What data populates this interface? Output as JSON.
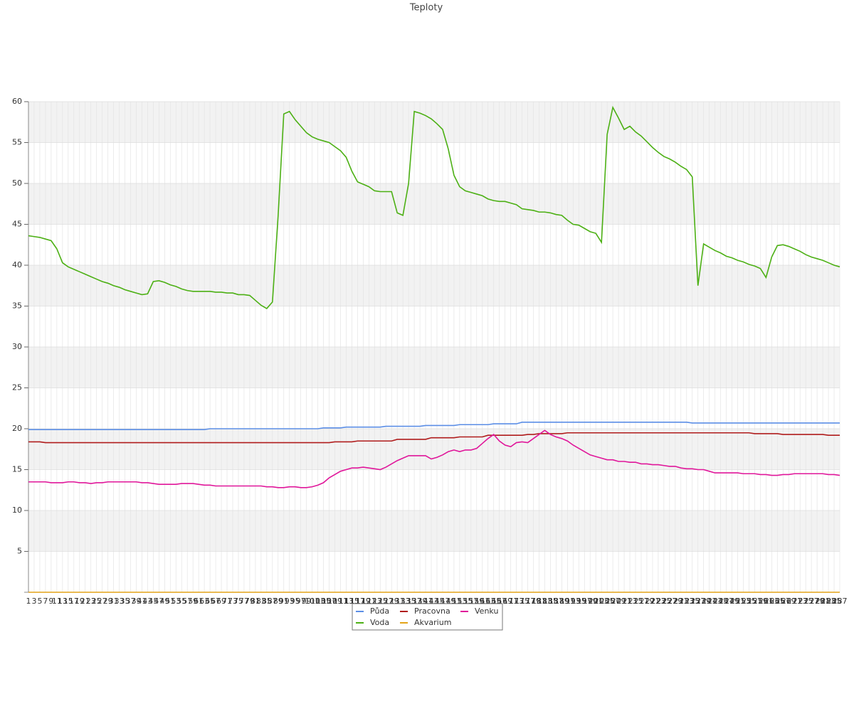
{
  "chart_data": {
    "type": "line",
    "title": "Teploty",
    "categories": [
      "1",
      "3",
      "5",
      "7",
      "9",
      "11",
      "13",
      "15",
      "17",
      "19",
      "21",
      "23",
      "25",
      "27",
      "29",
      "31",
      "33",
      "35",
      "37",
      "39",
      "41",
      "43",
      "45",
      "47",
      "49",
      "51",
      "53",
      "55",
      "57",
      "59",
      "61",
      "63",
      "65",
      "67",
      "69",
      "71",
      "73",
      "75",
      "77",
      "79",
      "81",
      "83",
      "85",
      "87",
      "89",
      "91",
      "93",
      "95",
      "97",
      "99",
      "101",
      "103",
      "105",
      "107",
      "109",
      "111",
      "113",
      "115",
      "117",
      "119",
      "121",
      "123",
      "125",
      "127",
      "129",
      "131",
      "133",
      "135",
      "137",
      "139",
      "141",
      "143",
      "145",
      "147",
      "149",
      "151",
      "153",
      "155",
      "157",
      "159",
      "161",
      "163",
      "165",
      "167",
      "169",
      "171",
      "173",
      "175",
      "177",
      "179",
      "181",
      "183",
      "185",
      "187",
      "189",
      "191",
      "193",
      "195",
      "197",
      "199",
      "201",
      "203",
      "205",
      "207",
      "209",
      "211",
      "213",
      "215",
      "217",
      "219",
      "221",
      "223",
      "225",
      "227",
      "229",
      "231",
      "233",
      "235",
      "237",
      "239",
      "241",
      "243",
      "245",
      "247",
      "249",
      "251",
      "253",
      "255",
      "257",
      "259",
      "261",
      "263",
      "265",
      "267",
      "269",
      "271",
      "273",
      "275",
      "277",
      "279",
      "281",
      "283",
      "285",
      "287"
    ],
    "series": [
      {
        "name": "Půda",
        "color": "#5b8ee6",
        "values": [
          19.9,
          19.9,
          19.9,
          19.9,
          19.9,
          19.9,
          19.9,
          19.9,
          19.9,
          19.9,
          19.9,
          19.9,
          19.9,
          19.9,
          19.9,
          19.9,
          19.9,
          19.9,
          19.9,
          19.9,
          19.9,
          19.9,
          19.9,
          19.9,
          19.9,
          19.9,
          19.9,
          19.9,
          19.9,
          19.9,
          19.9,
          19.9,
          20.0,
          20.0,
          20.0,
          20.0,
          20.0,
          20.0,
          20.0,
          20.0,
          20.0,
          20.0,
          20.0,
          20.0,
          20.0,
          20.0,
          20.0,
          20.0,
          20.0,
          20.0,
          20.0,
          20.0,
          20.1,
          20.1,
          20.1,
          20.1,
          20.2,
          20.2,
          20.2,
          20.2,
          20.2,
          20.2,
          20.2,
          20.3,
          20.3,
          20.3,
          20.3,
          20.3,
          20.3,
          20.3,
          20.4,
          20.4,
          20.4,
          20.4,
          20.4,
          20.4,
          20.5,
          20.5,
          20.5,
          20.5,
          20.5,
          20.5,
          20.6,
          20.6,
          20.6,
          20.6,
          20.6,
          20.8,
          20.8,
          20.8,
          20.8,
          20.8,
          20.8,
          20.8,
          20.8,
          20.8,
          20.8,
          20.8,
          20.8,
          20.8,
          20.8,
          20.8,
          20.8,
          20.8,
          20.8,
          20.8,
          20.8,
          20.8,
          20.8,
          20.8,
          20.8,
          20.8,
          20.8,
          20.8,
          20.8,
          20.8,
          20.8,
          20.7,
          20.7,
          20.7,
          20.7,
          20.7,
          20.7,
          20.7,
          20.7,
          20.7,
          20.7,
          20.7,
          20.7,
          20.7,
          20.7,
          20.7,
          20.7,
          20.7,
          20.7,
          20.7,
          20.7,
          20.7,
          20.7,
          20.7,
          20.7,
          20.7,
          20.7,
          20.7
        ]
      },
      {
        "name": "Voda",
        "color": "#4cb014",
        "values": [
          43.6,
          43.5,
          43.4,
          43.2,
          43.0,
          42.0,
          40.3,
          39.8,
          39.5,
          39.2,
          38.9,
          38.6,
          38.3,
          38.0,
          37.8,
          37.5,
          37.3,
          37.0,
          36.8,
          36.6,
          36.4,
          36.5,
          38.0,
          38.1,
          37.9,
          37.6,
          37.4,
          37.1,
          36.9,
          36.8,
          36.8,
          36.8,
          36.8,
          36.7,
          36.7,
          36.6,
          36.6,
          36.4,
          36.4,
          36.3,
          35.7,
          35.1,
          34.7,
          35.5,
          46.0,
          58.5,
          58.8,
          57.8,
          57.0,
          56.2,
          55.7,
          55.4,
          55.2,
          55.0,
          54.5,
          54.0,
          53.2,
          51.5,
          50.2,
          49.9,
          49.6,
          49.1,
          49.0,
          49.0,
          49.0,
          46.4,
          46.1,
          50.0,
          58.8,
          58.6,
          58.3,
          57.9,
          57.3,
          56.6,
          54.2,
          51.0,
          49.6,
          49.1,
          48.9,
          48.7,
          48.5,
          48.1,
          47.9,
          47.8,
          47.8,
          47.6,
          47.4,
          46.9,
          46.8,
          46.7,
          46.5,
          46.5,
          46.4,
          46.2,
          46.1,
          45.5,
          45.0,
          44.9,
          44.5,
          44.1,
          43.9,
          42.8,
          56.0,
          59.3,
          58.0,
          56.6,
          57.0,
          56.3,
          55.8,
          55.1,
          54.4,
          53.8,
          53.3,
          53.0,
          52.6,
          52.1,
          51.7,
          50.8,
          37.5,
          42.6,
          42.2,
          41.8,
          41.5,
          41.1,
          40.9,
          40.6,
          40.4,
          40.1,
          39.9,
          39.6,
          38.5,
          41.0,
          42.4,
          42.5,
          42.3,
          42.0,
          41.7,
          41.3,
          41.0,
          40.8,
          40.6,
          40.3,
          40.0,
          39.8
        ]
      },
      {
        "name": "Pracovna",
        "color": "#b01c1c",
        "values": [
          18.4,
          18.4,
          18.4,
          18.3,
          18.3,
          18.3,
          18.3,
          18.3,
          18.3,
          18.3,
          18.3,
          18.3,
          18.3,
          18.3,
          18.3,
          18.3,
          18.3,
          18.3,
          18.3,
          18.3,
          18.3,
          18.3,
          18.3,
          18.3,
          18.3,
          18.3,
          18.3,
          18.3,
          18.3,
          18.3,
          18.3,
          18.3,
          18.3,
          18.3,
          18.3,
          18.3,
          18.3,
          18.3,
          18.3,
          18.3,
          18.3,
          18.3,
          18.3,
          18.3,
          18.3,
          18.3,
          18.3,
          18.3,
          18.3,
          18.3,
          18.3,
          18.3,
          18.3,
          18.3,
          18.4,
          18.4,
          18.4,
          18.4,
          18.5,
          18.5,
          18.5,
          18.5,
          18.5,
          18.5,
          18.5,
          18.7,
          18.7,
          18.7,
          18.7,
          18.7,
          18.7,
          18.9,
          18.9,
          18.9,
          18.9,
          18.9,
          19.0,
          19.0,
          19.0,
          19.0,
          19.0,
          19.2,
          19.2,
          19.2,
          19.2,
          19.2,
          19.2,
          19.2,
          19.3,
          19.3,
          19.4,
          19.4,
          19.4,
          19.4,
          19.4,
          19.5,
          19.5,
          19.5,
          19.5,
          19.5,
          19.5,
          19.5,
          19.5,
          19.5,
          19.5,
          19.5,
          19.5,
          19.5,
          19.5,
          19.5,
          19.5,
          19.5,
          19.5,
          19.5,
          19.5,
          19.5,
          19.5,
          19.5,
          19.5,
          19.5,
          19.5,
          19.5,
          19.5,
          19.5,
          19.5,
          19.5,
          19.5,
          19.5,
          19.4,
          19.4,
          19.4,
          19.4,
          19.4,
          19.3,
          19.3,
          19.3,
          19.3,
          19.3,
          19.3,
          19.3,
          19.3,
          19.2,
          19.2,
          19.2
        ]
      },
      {
        "name": "Akvarium",
        "color": "#e3a418",
        "values": [
          0,
          0,
          0,
          0,
          0,
          0,
          0,
          0,
          0,
          0,
          0,
          0,
          0,
          0,
          0,
          0,
          0,
          0,
          0,
          0,
          0,
          0,
          0,
          0,
          0,
          0,
          0,
          0,
          0,
          0,
          0,
          0,
          0,
          0,
          0,
          0,
          0,
          0,
          0,
          0,
          0,
          0,
          0,
          0,
          0,
          0,
          0,
          0,
          0,
          0,
          0,
          0,
          0,
          0,
          0,
          0,
          0,
          0,
          0,
          0,
          0,
          0,
          0,
          0,
          0,
          0,
          0,
          0,
          0,
          0,
          0,
          0,
          0,
          0,
          0,
          0,
          0,
          0,
          0,
          0,
          0,
          0,
          0,
          0,
          0,
          0,
          0,
          0,
          0,
          0,
          0,
          0,
          0,
          0,
          0,
          0,
          0,
          0,
          0,
          0,
          0,
          0,
          0,
          0,
          0,
          0,
          0,
          0,
          0,
          0,
          0,
          0,
          0,
          0,
          0,
          0,
          0,
          0,
          0,
          0,
          0,
          0,
          0,
          0,
          0,
          0,
          0,
          0,
          0,
          0,
          0,
          0,
          0,
          0,
          0,
          0,
          0,
          0,
          0,
          0,
          0,
          0,
          0,
          0
        ]
      },
      {
        "name": "Venku",
        "color": "#e0169a",
        "values": [
          13.5,
          13.5,
          13.5,
          13.5,
          13.4,
          13.4,
          13.4,
          13.5,
          13.5,
          13.4,
          13.4,
          13.3,
          13.4,
          13.4,
          13.5,
          13.5,
          13.5,
          13.5,
          13.5,
          13.5,
          13.4,
          13.4,
          13.3,
          13.2,
          13.2,
          13.2,
          13.2,
          13.3,
          13.3,
          13.3,
          13.2,
          13.1,
          13.1,
          13.0,
          13.0,
          13.0,
          13.0,
          13.0,
          13.0,
          13.0,
          13.0,
          13.0,
          12.9,
          12.9,
          12.8,
          12.8,
          12.9,
          12.9,
          12.8,
          12.8,
          12.9,
          13.1,
          13.4,
          14.0,
          14.4,
          14.8,
          15.0,
          15.2,
          15.2,
          15.3,
          15.2,
          15.1,
          15.0,
          15.3,
          15.7,
          16.1,
          16.4,
          16.7,
          16.7,
          16.7,
          16.7,
          16.3,
          16.5,
          16.8,
          17.2,
          17.4,
          17.2,
          17.4,
          17.4,
          17.6,
          18.2,
          18.8,
          19.3,
          18.5,
          18.0,
          17.8,
          18.3,
          18.4,
          18.3,
          18.8,
          19.3,
          19.8,
          19.3,
          19.0,
          18.8,
          18.5,
          18.0,
          17.6,
          17.2,
          16.8,
          16.6,
          16.4,
          16.2,
          16.2,
          16.0,
          16.0,
          15.9,
          15.9,
          15.7,
          15.7,
          15.6,
          15.6,
          15.5,
          15.4,
          15.4,
          15.2,
          15.1,
          15.1,
          15.0,
          15.0,
          14.8,
          14.6,
          14.6,
          14.6,
          14.6,
          14.6,
          14.5,
          14.5,
          14.5,
          14.4,
          14.4,
          14.3,
          14.3,
          14.4,
          14.4,
          14.5,
          14.5,
          14.5,
          14.5,
          14.5,
          14.5,
          14.4,
          14.4,
          14.3
        ]
      }
    ],
    "ylim": [
      0,
      60
    ],
    "yticks": [
      5,
      10,
      15,
      20,
      25,
      30,
      35,
      40,
      45,
      50,
      55,
      60
    ],
    "grid": true
  }
}
